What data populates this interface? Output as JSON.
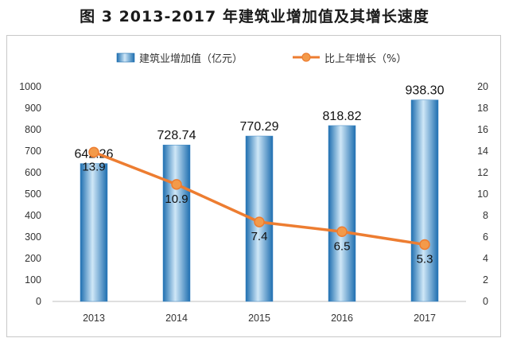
{
  "title": "图 3   2013-2017 年建筑业增加值及其增长速度",
  "colors": {
    "bar_dark": "#1f6fb0",
    "bar_light": "#cfe7f7",
    "line": "#ed7d31",
    "marker_fill": "#f39a4a"
  },
  "chart_data": {
    "type": "bar",
    "categories": [
      "2013",
      "2014",
      "2015",
      "2016",
      "2017"
    ],
    "series": [
      {
        "name": "建筑业增加值（亿元）",
        "type": "bar",
        "axis": "left",
        "values": [
          642.26,
          728.74,
          770.29,
          818.82,
          938.3
        ],
        "labels": [
          "642.26",
          "728.74",
          "770.29",
          "818.82",
          "938.30"
        ]
      },
      {
        "name": "比上年增长（%）",
        "type": "line",
        "axis": "right",
        "values": [
          13.9,
          10.9,
          7.4,
          6.5,
          5.3
        ],
        "labels": [
          "13.9",
          "10.9",
          "7.4",
          "6.5",
          "5.3"
        ]
      }
    ],
    "ylim_left": [
      0,
      1000
    ],
    "yticks_left": [
      "0",
      "100",
      "200",
      "300",
      "400",
      "500",
      "600",
      "700",
      "800",
      "900",
      "1000"
    ],
    "ylim_right": [
      0,
      20
    ],
    "yticks_right": [
      "0",
      "2",
      "4",
      "6",
      "8",
      "10",
      "12",
      "14",
      "16",
      "18",
      "20"
    ],
    "grid": false,
    "legend_position": "top"
  }
}
